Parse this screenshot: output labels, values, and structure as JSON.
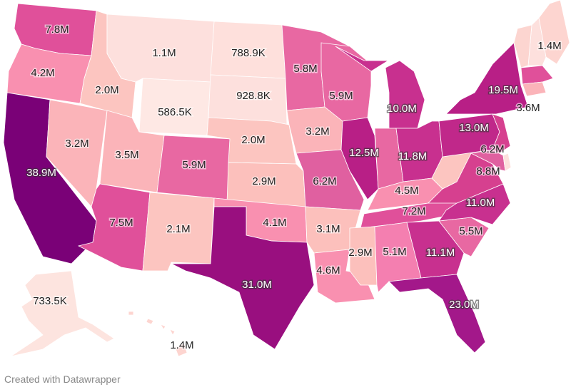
{
  "map": {
    "states": [
      {
        "label": "7.8M",
        "color": "#e0509a",
        "text": "light"
      },
      {
        "label": "4.2M",
        "color": "#f990b0",
        "text": "light"
      },
      {
        "label": "38.9M",
        "color": "#7a0177",
        "text": "dark"
      },
      {
        "label": "3.2M",
        "color": "#fbb4b9",
        "text": "light"
      },
      {
        "label": "2.0M",
        "color": "#fcc5c0",
        "text": "light"
      },
      {
        "label": "1.1M",
        "color": "#fde0dd",
        "text": "light"
      },
      {
        "label": "586.5K",
        "color": "#fee8e4",
        "text": "light"
      },
      {
        "label": "3.5M",
        "color": "#fbb4b9",
        "text": "light"
      },
      {
        "label": "5.9M",
        "color": "#e868a2",
        "text": "light"
      },
      {
        "label": "7.5M",
        "color": "#e0509a",
        "text": "light"
      },
      {
        "label": "2.1M",
        "color": "#fcc5c0",
        "text": "light"
      },
      {
        "label": "788.9K",
        "color": "#fee0dc",
        "text": "light"
      },
      {
        "label": "928.8K",
        "color": "#fde0dd",
        "text": "light"
      },
      {
        "label": "2.0M",
        "color": "#fcc5c0",
        "text": "light"
      },
      {
        "label": "2.9M",
        "color": "#fcc0bc",
        "text": "light"
      },
      {
        "label": "4.1M",
        "color": "#f990b0",
        "text": "light"
      },
      {
        "label": "31.0M",
        "color": "#990f7f",
        "text": "dark"
      },
      {
        "label": "5.8M",
        "color": "#e868a2",
        "text": "light"
      },
      {
        "label": "3.2M",
        "color": "#fbb4b9",
        "text": "light"
      },
      {
        "label": "6.2M",
        "color": "#e060a0",
        "text": "light"
      },
      {
        "label": "3.1M",
        "color": "#fcc0bc",
        "text": "light"
      },
      {
        "label": "4.6M",
        "color": "#f990b0",
        "text": "light"
      },
      {
        "label": "5.9M",
        "color": "#e868a2",
        "text": "light"
      },
      {
        "label": "12.5M",
        "color": "#b81f86",
        "text": "dark"
      },
      {
        "label": "10.0M",
        "color": "#c8308f",
        "text": "dark"
      },
      {
        "label": "",
        "color": "#e868a2",
        "text": "light"
      },
      {
        "label": "11.8M",
        "color": "#c8308f",
        "text": "dark"
      },
      {
        "label": "4.5M",
        "color": "#f990b0",
        "text": "light"
      },
      {
        "label": "7.2M",
        "color": "#e0509a",
        "text": "light"
      },
      {
        "label": "2.9M",
        "color": "#fcc0bc",
        "text": "light"
      },
      {
        "label": "5.1M",
        "color": "#f47fb0",
        "text": "light"
      },
      {
        "label": "11.1M",
        "color": "#c8308f",
        "text": "dark"
      },
      {
        "label": "23.0M",
        "color": "#a3188a",
        "text": "dark"
      },
      {
        "label": "5.5M",
        "color": "#e868a2",
        "text": "light"
      },
      {
        "label": "11.0M",
        "color": "#c8308f",
        "text": "dark"
      },
      {
        "label": "8.8M",
        "color": "#d6408f",
        "text": "light"
      },
      {
        "label": "",
        "color": "#fcc5c0",
        "text": "light"
      },
      {
        "label": "13.0M",
        "color": "#c0288a",
        "text": "dark"
      },
      {
        "label": "19.5M",
        "color": "#b81f86",
        "text": "dark"
      },
      {
        "label": "",
        "color": "#d6408f",
        "text": "light"
      },
      {
        "label": "6.2M",
        "color": "#e060a0",
        "text": "light"
      },
      {
        "label": "",
        "color": "#fde0dd",
        "text": "light"
      },
      {
        "label": "",
        "color": "#fcd5d0",
        "text": "light"
      },
      {
        "label": "1.4M",
        "color": "#fdd5d0",
        "text": "light"
      },
      {
        "label": "",
        "color": "#e0509a",
        "text": "light"
      },
      {
        "label": "3.6M",
        "color": "#fbb4b9",
        "text": "light"
      },
      {
        "label": "733.5K",
        "color": "#fde4df",
        "text": "light"
      },
      {
        "label": "1.4M",
        "color": "#fdd5d0",
        "text": "light"
      }
    ]
  },
  "footer": {
    "credit": "Created with Datawrapper"
  }
}
